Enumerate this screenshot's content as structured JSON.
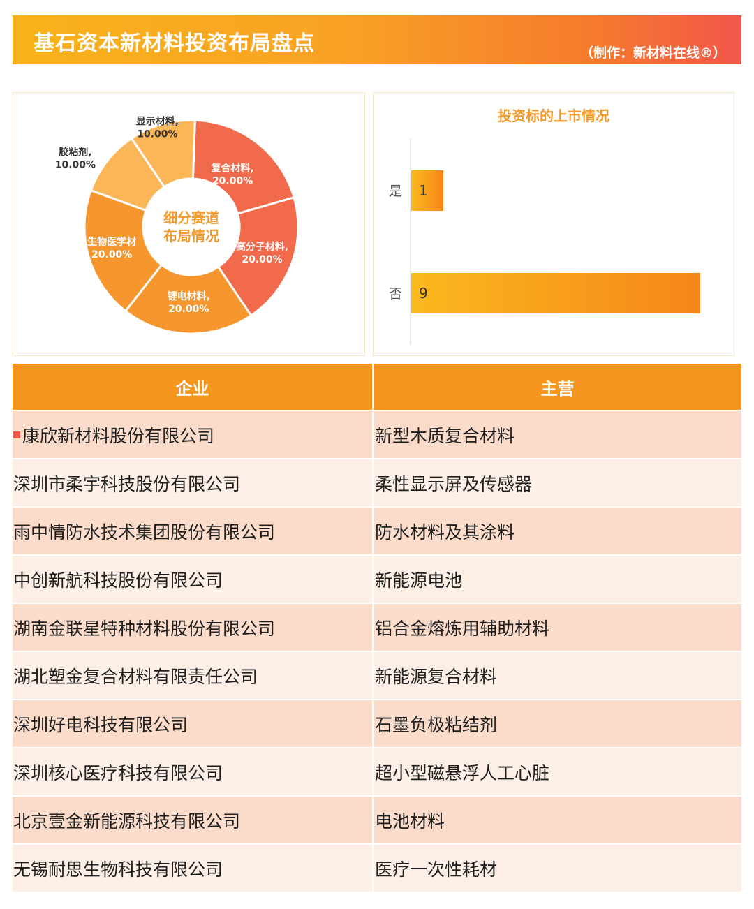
{
  "header": {
    "title": "基石资本新材料投资布局盘点",
    "credit": "（制作：新材料在线®）"
  },
  "chart_data": [
    {
      "type": "pie",
      "title": "细分赛道布局情况",
      "title_lines": [
        "细分赛道",
        "布局情况"
      ],
      "slices": [
        {
          "label": "复合材料,",
          "value": 20,
          "percent": "20.00%",
          "color": "#f26a4c"
        },
        {
          "label": "高分子材料,",
          "value": 20,
          "percent": "20.00%",
          "color": "#f26a4c"
        },
        {
          "label": "锂电材料,",
          "value": 20,
          "percent": "20.00%",
          "color": "#f6962e"
        },
        {
          "label": "生物医学材",
          "value": 20,
          "percent": "20.00%",
          "color": "#f6962e"
        },
        {
          "label": "胶粘剂,",
          "value": 10,
          "percent": "10.00%",
          "color": "#fab657"
        },
        {
          "label": "显示材料,",
          "value": 10,
          "percent": "10.00%",
          "color": "#fab657"
        }
      ]
    },
    {
      "type": "bar",
      "orientation": "horizontal",
      "title": "投资标的上市情况",
      "categories": [
        "是",
        "否"
      ],
      "values": [
        1,
        9
      ],
      "xlim": [
        0,
        9
      ],
      "color_start": "#fbb91e",
      "color_end": "#f5861a"
    }
  ],
  "table": {
    "headers": [
      "企业",
      "主营"
    ],
    "rows": [
      [
        "康欣新材料股份有限公司",
        "新型木质复合材料"
      ],
      [
        "深圳市柔宇科技股份有限公司",
        "柔性显示屏及传感器"
      ],
      [
        "雨中情防水技术集团股份有限公司",
        "防水材料及其涂料"
      ],
      [
        "中创新航科技股份有限公司",
        "新能源电池"
      ],
      [
        "湖南金联星特种材料股份有限公司",
        "铝合金熔炼用辅助材料"
      ],
      [
        "湖北塑金复合材料有限责任公司",
        "新能源复合材料"
      ],
      [
        "深圳好电科技有限公司",
        "石墨负极粘结剂"
      ],
      [
        "深圳核心医疗科技有限公司",
        "超小型磁悬浮人工心脏"
      ],
      [
        "北京壹金新能源科技有限公司",
        "电池材料"
      ],
      [
        "无锡耐思生物科技有限公司",
        "医疗一次性耗材"
      ]
    ]
  }
}
